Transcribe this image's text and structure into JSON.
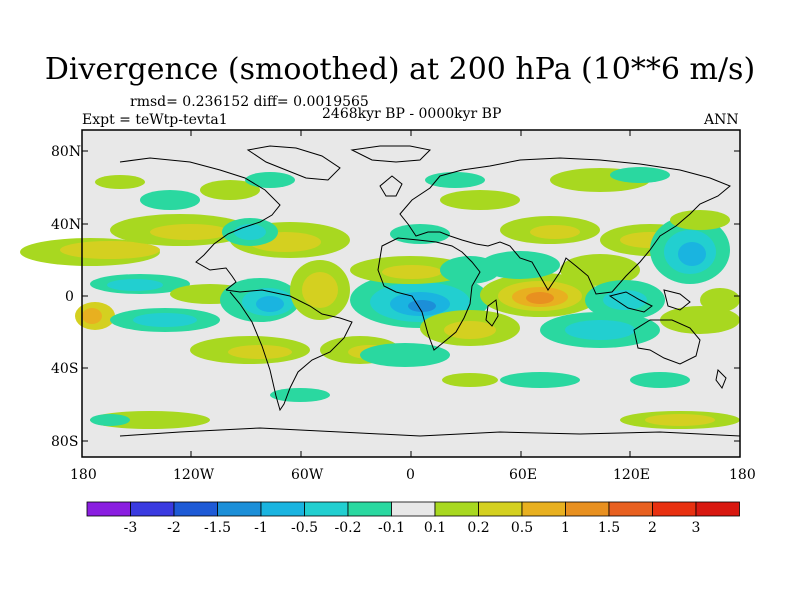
{
  "title": "Divergence (smoothed) at 200 hPa (10**6 m/s)",
  "stats": "rmsd= 0.236152 diff= 0.0019565",
  "period": "2468kyr BP - 0000kyr BP",
  "experiment": "Expt = teWtp-tevta1",
  "season": "ANN",
  "lat_labels": [
    "80N",
    "40N",
    "0",
    "40S",
    "80S"
  ],
  "lon_labels": [
    "180",
    "120W",
    "60W",
    "0",
    "60E",
    "120E",
    "180"
  ],
  "colorbar": {
    "labels": [
      "-3",
      "-2",
      "-1.5",
      "-1",
      "-0.5",
      "-0.2",
      "-0.1",
      "0.1",
      "0.2",
      "0.5",
      "1",
      "1.5",
      "2",
      "3"
    ],
    "colors": [
      "#8a1ee0",
      "#3a3ae0",
      "#1e5ad6",
      "#1c8fd8",
      "#1ab4e0",
      "#22cfd0",
      "#2ad8a0",
      "#e8e8e8",
      "#a8d820",
      "#d4d020",
      "#e8b020",
      "#e89020",
      "#e86020",
      "#e83010",
      "#d81810"
    ]
  },
  "map_colors": {
    "background": "#e8e8e8",
    "neg_weak": "#2ad8a0",
    "neg_mid": "#22cfd0",
    "neg_strong": "#1ab4e0",
    "neg_stronger": "#1c8fd8",
    "pos_weak": "#a8d820",
    "pos_mid": "#d4d020",
    "pos_strong": "#e8b020",
    "pos_stronger": "#e89020",
    "pos_max": "#e86020"
  }
}
